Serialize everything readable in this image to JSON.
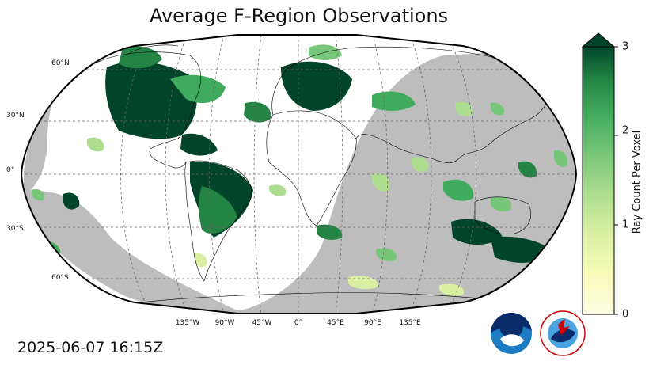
{
  "map": {
    "title": "Average F-Region Observations",
    "timestamp": "2025-06-07 16:15Z",
    "projection": "Robinson",
    "night_shading_color": "#bdbdbd",
    "lat_labels": [
      "60°N",
      "30°N",
      "0°",
      "30°S",
      "60°S"
    ],
    "lon_labels": [
      "135°W",
      "90°W",
      "45°W",
      "0°",
      "45°E",
      "90°E",
      "135°E"
    ]
  },
  "colorbar": {
    "label": "Ray Count Per Voxel",
    "ticks": [
      "0",
      "1",
      "2",
      "3"
    ],
    "range": [
      0,
      3
    ],
    "colormap": "YlGn",
    "extend": "max",
    "low_color": "#ffffe5",
    "high_color": "#004529"
  },
  "logos": {
    "noaa": "NOAA",
    "nws": "NATIONAL WEATHER SERVICE"
  }
}
